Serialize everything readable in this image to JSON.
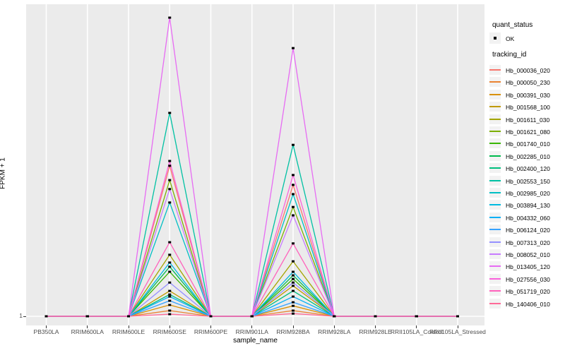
{
  "figure": {
    "background": "#FFFFFF",
    "panel_background": "#EBEBEB",
    "gridline_color": "#FFFFFF",
    "axis_text_color": "#4D4D4D",
    "tick_color": "#333333",
    "point_color": "#000000"
  },
  "axes": {
    "x_title": "sample_name",
    "y_title": "FPKM + 1",
    "y_tick_labels": [
      "1"
    ]
  },
  "legend": {
    "quant_status": {
      "title": "quant_status",
      "items": [
        {
          "label": "OK",
          "shape": "filled-point",
          "color": "#000000"
        }
      ]
    },
    "tracking_id": {
      "title": "tracking_id",
      "items": [
        {
          "label": "Hb_000036_020",
          "color": "#F8766D"
        },
        {
          "label": "Hb_000050_230",
          "color": "#EA8331"
        },
        {
          "label": "Hb_000391_030",
          "color": "#D89000"
        },
        {
          "label": "Hb_001568_100",
          "color": "#C09B00"
        },
        {
          "label": "Hb_001611_030",
          "color": "#A3A500"
        },
        {
          "label": "Hb_001621_080",
          "color": "#7CAE00"
        },
        {
          "label": "Hb_001740_010",
          "color": "#39B600"
        },
        {
          "label": "Hb_002285_010",
          "color": "#00BB4E"
        },
        {
          "label": "Hb_002400_120",
          "color": "#00BF7D"
        },
        {
          "label": "Hb_002553_150",
          "color": "#00C1A3"
        },
        {
          "label": "Hb_002985_020",
          "color": "#00BFC4"
        },
        {
          "label": "Hb_003894_130",
          "color": "#00BAE0"
        },
        {
          "label": "Hb_004332_060",
          "color": "#00B0F6"
        },
        {
          "label": "Hb_006124_020",
          "color": "#35A2FF"
        },
        {
          "label": "Hb_007313_020",
          "color": "#9590FF"
        },
        {
          "label": "Hb_008052_010",
          "color": "#C77CFF"
        },
        {
          "label": "Hb_013405_120",
          "color": "#E76BF3"
        },
        {
          "label": "Hb_027556_030",
          "color": "#FA62DB"
        },
        {
          "label": "Hb_051719_020",
          "color": "#FF62BC"
        },
        {
          "label": "Hb_140406_010",
          "color": "#FF6A98"
        }
      ]
    }
  },
  "chart_data": {
    "type": "line",
    "title": "",
    "xlabel": "sample_name",
    "ylabel": "FPKM + 1",
    "legend_position": "right",
    "grid": "white gridlines on gray panel; one vertical line per category, one horizontal line at y tick 1",
    "point_marker": "small black filled point at every data vertex (quant_status = OK)",
    "y_axis_note": "Only the tick '1' (FPKM+1 baseline) is labeled; series values below are relative peak heights on a 0-1 scale of the panel (1.0 = tallest peak).",
    "ylim": [
      0,
      1
    ],
    "categories": [
      "PB350LA",
      "RRIM600LA",
      "RRIM600LE",
      "RRIM600SE",
      "RRIM600PE",
      "RRIM901LA",
      "RRIM928BA",
      "RRIM928LA",
      "RRIM928LE",
      "RRII105LA_Control",
      "RRII105LA_Stressed"
    ],
    "series": [
      {
        "name": "Hb_000036_020",
        "color": "#F8766D",
        "values": [
          0,
          0,
          0,
          0.504,
          0,
          0,
          0.44,
          0,
          0,
          0,
          0
        ]
      },
      {
        "name": "Hb_000050_230",
        "color": "#EA8331",
        "values": [
          0,
          0,
          0,
          0.019,
          0,
          0,
          0.019,
          0,
          0,
          0,
          0
        ]
      },
      {
        "name": "Hb_000391_030",
        "color": "#D89000",
        "values": [
          0,
          0,
          0,
          0.038,
          0,
          0,
          0.035,
          0,
          0,
          0,
          0
        ]
      },
      {
        "name": "Hb_001568_100",
        "color": "#C09B00",
        "values": [
          0,
          0,
          0,
          0.085,
          0,
          0,
          0.102,
          0,
          0,
          0,
          0
        ]
      },
      {
        "name": "Hb_001611_030",
        "color": "#A3A500",
        "values": [
          0,
          0,
          0,
          0.206,
          0,
          0,
          0.184,
          0,
          0,
          0,
          0
        ]
      },
      {
        "name": "Hb_001621_080",
        "color": "#7CAE00",
        "values": [
          0,
          0,
          0,
          0.456,
          0,
          0,
          0.366,
          0,
          0,
          0,
          0
        ]
      },
      {
        "name": "Hb_001740_010",
        "color": "#39B600",
        "values": [
          0,
          0,
          0,
          0.149,
          0,
          0,
          0.125,
          0,
          0,
          0,
          0
        ]
      },
      {
        "name": "Hb_002285_010",
        "color": "#00BB4E",
        "values": [
          0,
          0,
          0,
          0.166,
          0,
          0,
          0.137,
          0,
          0,
          0,
          0
        ]
      },
      {
        "name": "Hb_002400_120",
        "color": "#00BF7D",
        "values": [
          0,
          0,
          0,
          0.073,
          0,
          0,
          0.085,
          0,
          0,
          0,
          0
        ]
      },
      {
        "name": "Hb_002553_150",
        "color": "#00C1A3",
        "values": [
          0,
          0,
          0,
          0.681,
          0,
          0,
          0.574,
          0,
          0,
          0,
          0
        ]
      },
      {
        "name": "Hb_002985_020",
        "color": "#00BFC4",
        "values": [
          0,
          0,
          0,
          0.381,
          0,
          0,
          0.409,
          0,
          0,
          0,
          0
        ]
      },
      {
        "name": "Hb_003894_130",
        "color": "#00BAE0",
        "values": [
          0,
          0,
          0,
          0.18,
          0,
          0,
          0.149,
          0,
          0,
          0,
          0
        ]
      },
      {
        "name": "Hb_004332_060",
        "color": "#00B0F6",
        "values": [
          0,
          0,
          0,
          0.066,
          0,
          0,
          0.066,
          0,
          0,
          0,
          0
        ]
      },
      {
        "name": "Hb_006124_020",
        "color": "#35A2FF",
        "values": [
          0,
          0,
          0,
          0.052,
          0,
          0,
          0.047,
          0,
          0,
          0,
          0
        ]
      },
      {
        "name": "Hb_007313_020",
        "color": "#9590FF",
        "values": [
          0,
          0,
          0,
          0.113,
          0,
          0,
          0.113,
          0,
          0,
          0,
          0
        ]
      },
      {
        "name": "Hb_008052_010",
        "color": "#C77CFF",
        "values": [
          0,
          0,
          0,
          0.426,
          0,
          0,
          0.338,
          0,
          0,
          0,
          0
        ]
      },
      {
        "name": "Hb_013405_120",
        "color": "#E76BF3",
        "values": [
          0,
          0,
          0,
          1.0,
          0,
          0,
          0.898,
          0,
          0,
          0,
          0
        ]
      },
      {
        "name": "Hb_027556_030",
        "color": "#FA62DB",
        "values": [
          0,
          0,
          0,
          0.52,
          0,
          0,
          0.473,
          0,
          0,
          0,
          0
        ]
      },
      {
        "name": "Hb_051719_020",
        "color": "#FF62BC",
        "values": [
          0,
          0,
          0,
          0.248,
          0,
          0,
          0.244,
          0,
          0,
          0,
          0
        ]
      },
      {
        "name": "Hb_140406_010",
        "color": "#FF6A98",
        "values": [
          0,
          0,
          0,
          0.007,
          0,
          0,
          0.009,
          0,
          0,
          0,
          0
        ]
      }
    ]
  }
}
